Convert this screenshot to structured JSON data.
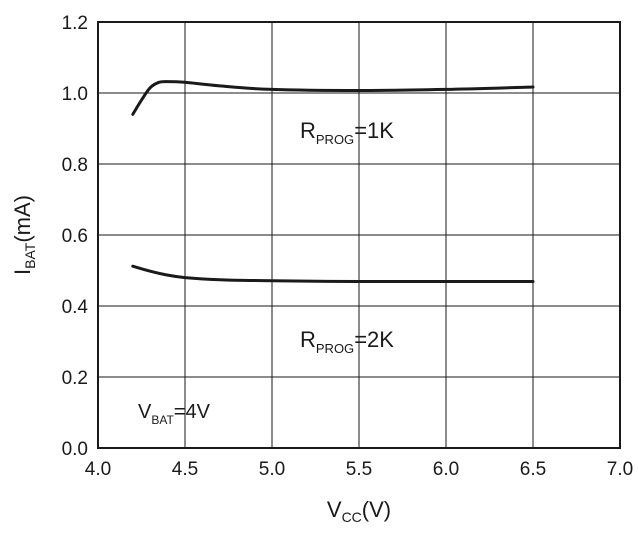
{
  "chart_data": {
    "type": "line",
    "xlim": [
      4.0,
      7.0
    ],
    "ylim": [
      0.0,
      1.2
    ],
    "grid": true,
    "x_ticks": [
      "4.0",
      "4.5",
      "5.0",
      "5.5",
      "6.0",
      "6.5",
      "7.0"
    ],
    "y_ticks": [
      "0.0",
      "0.2",
      "0.4",
      "0.6",
      "0.8",
      "1.0",
      "1.2"
    ],
    "xlabel": {
      "main": "V",
      "sub": "CC",
      "suffix": "(V)"
    },
    "ylabel": {
      "main": "I",
      "sub": "BAT",
      "suffix": "(mA)"
    },
    "series": [
      {
        "x": [
          4.2,
          4.25,
          4.3,
          4.35,
          4.4,
          4.5,
          4.7,
          5.0,
          5.5,
          6.0,
          6.5
        ],
        "y": [
          0.94,
          0.98,
          1.015,
          1.03,
          1.032,
          1.03,
          1.02,
          1.01,
          1.007,
          1.01,
          1.017
        ]
      },
      {
        "x": [
          4.2,
          4.3,
          4.4,
          4.5,
          4.7,
          5.0,
          5.5,
          6.0,
          6.5
        ],
        "y": [
          0.512,
          0.498,
          0.487,
          0.48,
          0.474,
          0.471,
          0.469,
          0.469,
          0.469
        ]
      }
    ],
    "annotations": [
      {
        "main": "R",
        "sub": "PROG",
        "suffix": "=1K"
      },
      {
        "main": "R",
        "sub": "PROG",
        "suffix": "=2K"
      },
      {
        "main": "V",
        "sub": "BAT",
        "suffix": "=4V"
      }
    ]
  }
}
